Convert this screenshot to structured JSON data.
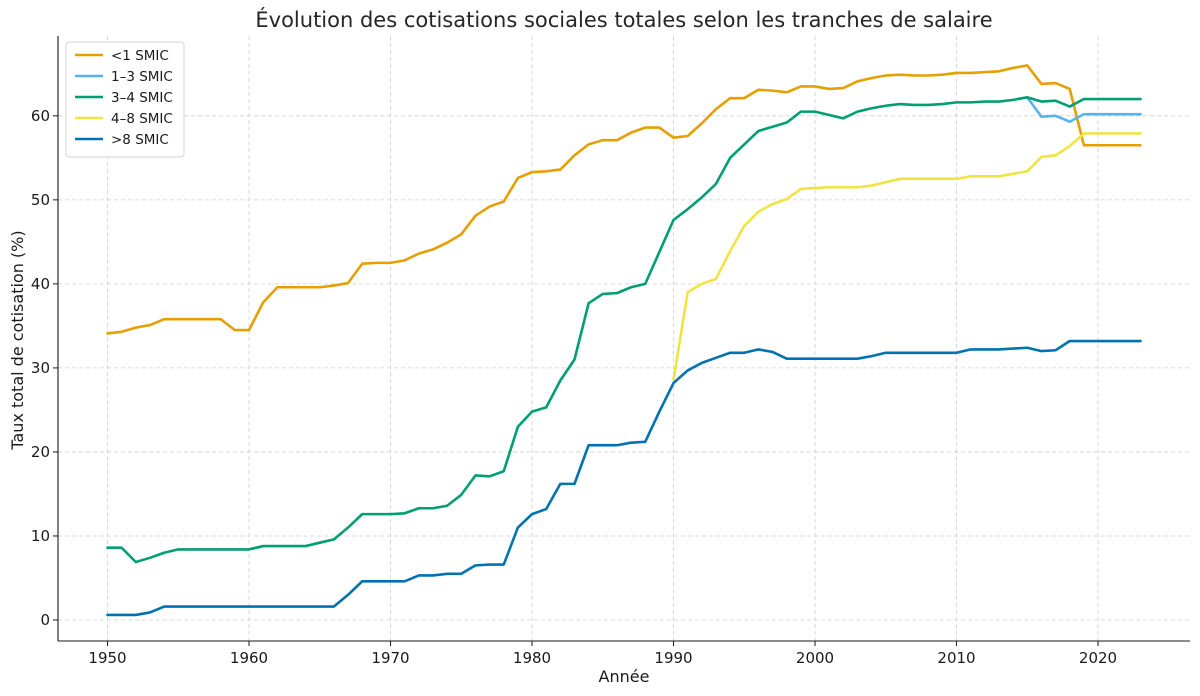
{
  "chart_data": {
    "type": "line",
    "title": "Évolution des cotisations sociales totales selon les tranches de salaire",
    "xlabel": "Année",
    "ylabel": "Taux total de cotisation (%)",
    "xlim": [
      1946.5,
      1926.5
    ],
    "ylim": [
      -2.5,
      69.5
    ],
    "xticks": [
      1950,
      1960,
      1970,
      1980,
      1990,
      2000,
      2010,
      2020
    ],
    "yticks": [
      0,
      10,
      20,
      30,
      40,
      50,
      60
    ],
    "grid": true,
    "legend_position": "upper-left",
    "series": [
      {
        "name": "<1 SMIC",
        "color": "#E69F00",
        "points": [
          [
            1950,
            34.1
          ],
          [
            1951,
            34.3
          ],
          [
            1952,
            34.8
          ],
          [
            1953,
            35.1
          ],
          [
            1954,
            35.8
          ],
          [
            1955,
            35.8
          ],
          [
            1956,
            35.8
          ],
          [
            1957,
            35.8
          ],
          [
            1958,
            35.8
          ],
          [
            1959,
            34.5
          ],
          [
            1960,
            34.5
          ],
          [
            1961,
            37.8
          ],
          [
            1962,
            39.6
          ],
          [
            1963,
            39.6
          ],
          [
            1964,
            39.6
          ],
          [
            1965,
            39.6
          ],
          [
            1966,
            39.8
          ],
          [
            1967,
            40.1
          ],
          [
            1968,
            42.4
          ],
          [
            1969,
            42.5
          ],
          [
            1970,
            42.5
          ],
          [
            1971,
            42.8
          ],
          [
            1972,
            43.6
          ],
          [
            1973,
            44.1
          ],
          [
            1974,
            44.9
          ],
          [
            1975,
            45.9
          ],
          [
            1976,
            48.1
          ],
          [
            1977,
            49.2
          ],
          [
            1978,
            49.8
          ],
          [
            1979,
            52.6
          ],
          [
            1980,
            53.3
          ],
          [
            1981,
            53.4
          ],
          [
            1982,
            53.6
          ],
          [
            1983,
            55.3
          ],
          [
            1984,
            56.6
          ],
          [
            1985,
            57.1
          ],
          [
            1986,
            57.1
          ],
          [
            1987,
            58.0
          ],
          [
            1988,
            58.6
          ],
          [
            1989,
            58.6
          ],
          [
            1990,
            57.4
          ],
          [
            1991,
            57.6
          ],
          [
            1992,
            59.1
          ],
          [
            1993,
            60.8
          ],
          [
            1994,
            62.1
          ],
          [
            1995,
            62.1
          ],
          [
            1996,
            63.1
          ],
          [
            1997,
            63.0
          ],
          [
            1998,
            62.8
          ],
          [
            1999,
            63.5
          ],
          [
            2000,
            63.5
          ],
          [
            2001,
            63.2
          ],
          [
            2002,
            63.3
          ],
          [
            2003,
            64.1
          ],
          [
            2004,
            64.5
          ],
          [
            2005,
            64.8
          ],
          [
            2006,
            64.9
          ],
          [
            2007,
            64.8
          ],
          [
            2008,
            64.8
          ],
          [
            2009,
            64.9
          ],
          [
            2010,
            65.1
          ],
          [
            2011,
            65.1
          ],
          [
            2012,
            65.2
          ],
          [
            2013,
            65.3
          ],
          [
            2014,
            65.7
          ],
          [
            2015,
            66.0
          ],
          [
            2016,
            63.8
          ],
          [
            2017,
            63.9
          ],
          [
            2018,
            63.2
          ],
          [
            2019,
            56.5
          ],
          [
            2020,
            56.5
          ],
          [
            2021,
            56.5
          ],
          [
            2022,
            56.5
          ],
          [
            2023,
            56.5
          ]
        ]
      },
      {
        "name": "1–3 SMIC",
        "color": "#56B4E9",
        "points": [
          [
            2015,
            62.2
          ],
          [
            2016,
            59.9
          ],
          [
            2017,
            60.0
          ],
          [
            2018,
            59.3
          ],
          [
            2019,
            60.2
          ],
          [
            2020,
            60.2
          ],
          [
            2021,
            60.2
          ],
          [
            2022,
            60.2
          ],
          [
            2023,
            60.2
          ]
        ]
      },
      {
        "name": "3–4 SMIC",
        "color": "#009E73",
        "points": [
          [
            1950,
            8.6
          ],
          [
            1951,
            8.6
          ],
          [
            1952,
            6.9
          ],
          [
            1953,
            7.4
          ],
          [
            1954,
            8.0
          ],
          [
            1955,
            8.4
          ],
          [
            1956,
            8.4
          ],
          [
            1957,
            8.4
          ],
          [
            1958,
            8.4
          ],
          [
            1959,
            8.4
          ],
          [
            1960,
            8.4
          ],
          [
            1961,
            8.8
          ],
          [
            1962,
            8.8
          ],
          [
            1963,
            8.8
          ],
          [
            1964,
            8.8
          ],
          [
            1965,
            9.2
          ],
          [
            1966,
            9.6
          ],
          [
            1967,
            11.0
          ],
          [
            1968,
            12.6
          ],
          [
            1969,
            12.6
          ],
          [
            1970,
            12.6
          ],
          [
            1971,
            12.7
          ],
          [
            1972,
            13.3
          ],
          [
            1973,
            13.3
          ],
          [
            1974,
            13.6
          ],
          [
            1975,
            14.9
          ],
          [
            1976,
            17.2
          ],
          [
            1977,
            17.1
          ],
          [
            1978,
            17.7
          ],
          [
            1979,
            23.0
          ],
          [
            1980,
            24.8
          ],
          [
            1981,
            25.3
          ],
          [
            1982,
            28.5
          ],
          [
            1983,
            31.0
          ],
          [
            1984,
            37.7
          ],
          [
            1985,
            38.8
          ],
          [
            1986,
            38.9
          ],
          [
            1987,
            39.6
          ],
          [
            1988,
            40.0
          ],
          [
            1989,
            43.8
          ],
          [
            1990,
            47.6
          ],
          [
            1991,
            48.9
          ],
          [
            1992,
            50.3
          ],
          [
            1993,
            51.9
          ],
          [
            1994,
            55.0
          ],
          [
            1995,
            56.6
          ],
          [
            1996,
            58.2
          ],
          [
            1997,
            58.7
          ],
          [
            1998,
            59.2
          ],
          [
            1999,
            60.5
          ],
          [
            2000,
            60.5
          ],
          [
            2001,
            60.1
          ],
          [
            2002,
            59.7
          ],
          [
            2003,
            60.5
          ],
          [
            2004,
            60.9
          ],
          [
            2005,
            61.2
          ],
          [
            2006,
            61.4
          ],
          [
            2007,
            61.3
          ],
          [
            2008,
            61.3
          ],
          [
            2009,
            61.4
          ],
          [
            2010,
            61.6
          ],
          [
            2011,
            61.6
          ],
          [
            2012,
            61.7
          ],
          [
            2013,
            61.7
          ],
          [
            2014,
            61.9
          ],
          [
            2015,
            62.2
          ],
          [
            2016,
            61.7
          ],
          [
            2017,
            61.8
          ],
          [
            2018,
            61.1
          ],
          [
            2019,
            62.0
          ],
          [
            2020,
            62.0
          ],
          [
            2021,
            62.0
          ],
          [
            2022,
            62.0
          ],
          [
            2023,
            62.0
          ]
        ]
      },
      {
        "name": "4–8 SMIC",
        "color": "#F0E442",
        "points": [
          [
            1990,
            28.6
          ],
          [
            1991,
            39.0
          ],
          [
            1992,
            40.0
          ],
          [
            1993,
            40.6
          ],
          [
            1994,
            43.9
          ],
          [
            1995,
            46.9
          ],
          [
            1996,
            48.6
          ],
          [
            1997,
            49.5
          ],
          [
            1998,
            50.1
          ],
          [
            1999,
            51.3
          ],
          [
            2000,
            51.4
          ],
          [
            2001,
            51.5
          ],
          [
            2002,
            51.5
          ],
          [
            2003,
            51.5
          ],
          [
            2004,
            51.7
          ],
          [
            2005,
            52.1
          ],
          [
            2006,
            52.5
          ],
          [
            2007,
            52.5
          ],
          [
            2008,
            52.5
          ],
          [
            2009,
            52.5
          ],
          [
            2010,
            52.5
          ],
          [
            2011,
            52.8
          ],
          [
            2012,
            52.8
          ],
          [
            2013,
            52.8
          ],
          [
            2014,
            53.1
          ],
          [
            2015,
            53.4
          ],
          [
            2016,
            55.1
          ],
          [
            2017,
            55.3
          ],
          [
            2018,
            56.4
          ],
          [
            2019,
            57.9
          ],
          [
            2020,
            57.9
          ],
          [
            2021,
            57.9
          ],
          [
            2022,
            57.9
          ],
          [
            2023,
            57.9
          ]
        ]
      },
      {
        "name": ">8 SMIC",
        "color": "#0072B2",
        "points": [
          [
            1950,
            0.6
          ],
          [
            1951,
            0.6
          ],
          [
            1952,
            0.6
          ],
          [
            1953,
            0.9
          ],
          [
            1954,
            1.6
          ],
          [
            1955,
            1.6
          ],
          [
            1956,
            1.6
          ],
          [
            1957,
            1.6
          ],
          [
            1958,
            1.6
          ],
          [
            1959,
            1.6
          ],
          [
            1960,
            1.6
          ],
          [
            1961,
            1.6
          ],
          [
            1962,
            1.6
          ],
          [
            1963,
            1.6
          ],
          [
            1964,
            1.6
          ],
          [
            1965,
            1.6
          ],
          [
            1966,
            1.6
          ],
          [
            1967,
            3.0
          ],
          [
            1968,
            4.6
          ],
          [
            1969,
            4.6
          ],
          [
            1970,
            4.6
          ],
          [
            1971,
            4.6
          ],
          [
            1972,
            5.3
          ],
          [
            1973,
            5.3
          ],
          [
            1974,
            5.5
          ],
          [
            1975,
            5.5
          ],
          [
            1976,
            6.5
          ],
          [
            1977,
            6.6
          ],
          [
            1978,
            6.6
          ],
          [
            1979,
            11.0
          ],
          [
            1980,
            12.6
          ],
          [
            1981,
            13.2
          ],
          [
            1982,
            16.2
          ],
          [
            1983,
            16.2
          ],
          [
            1984,
            20.8
          ],
          [
            1985,
            20.8
          ],
          [
            1986,
            20.8
          ],
          [
            1987,
            21.1
          ],
          [
            1988,
            21.2
          ],
          [
            1989,
            24.8
          ],
          [
            1990,
            28.2
          ],
          [
            1991,
            29.7
          ],
          [
            1992,
            30.6
          ],
          [
            1993,
            31.2
          ],
          [
            1994,
            31.8
          ],
          [
            1995,
            31.8
          ],
          [
            1996,
            32.2
          ],
          [
            1997,
            31.9
          ],
          [
            1998,
            31.1
          ],
          [
            1999,
            31.1
          ],
          [
            2000,
            31.1
          ],
          [
            2001,
            31.1
          ],
          [
            2002,
            31.1
          ],
          [
            2003,
            31.1
          ],
          [
            2004,
            31.4
          ],
          [
            2005,
            31.8
          ],
          [
            2006,
            31.8
          ],
          [
            2007,
            31.8
          ],
          [
            2008,
            31.8
          ],
          [
            2009,
            31.8
          ],
          [
            2010,
            31.8
          ],
          [
            2011,
            32.2
          ],
          [
            2012,
            32.2
          ],
          [
            2013,
            32.2
          ],
          [
            2014,
            32.3
          ],
          [
            2015,
            32.4
          ],
          [
            2016,
            32.0
          ],
          [
            2017,
            32.1
          ],
          [
            2018,
            33.2
          ],
          [
            2019,
            33.2
          ],
          [
            2020,
            33.2
          ],
          [
            2021,
            33.2
          ],
          [
            2022,
            33.2
          ],
          [
            2023,
            33.2
          ]
        ]
      }
    ]
  }
}
